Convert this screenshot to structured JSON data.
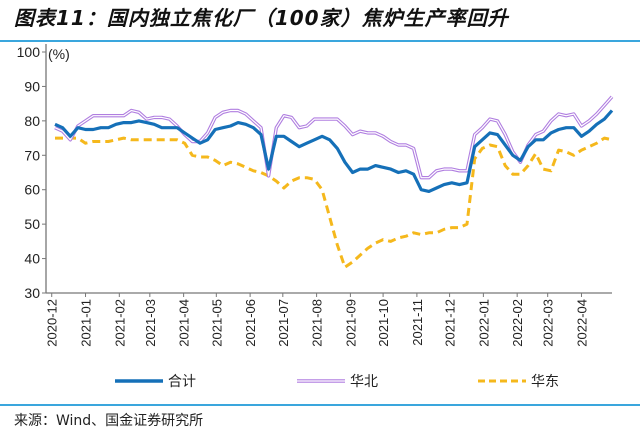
{
  "title": "图表11：国内独立焦化厂（100家）焦炉生产率回升",
  "source": "来源：Wind、国金证券研究所",
  "chart_data": {
    "type": "line",
    "title": "图表11：国内独立焦化厂（100家）焦炉生产率回升",
    "ylabel": "(%)",
    "xlabel": "",
    "ylim": [
      30,
      100
    ],
    "yticks": [
      30,
      40,
      50,
      60,
      70,
      80,
      90,
      100
    ],
    "xticks": [
      "2020-12",
      "2021-01",
      "2021-02",
      "2021-03",
      "2021-04",
      "2021-05",
      "2021-06",
      "2021-07",
      "2021-08",
      "2021-09",
      "2021-10",
      "2021-11",
      "2021-12",
      "2022-01",
      "2022-02",
      "2022-03",
      "2022-04"
    ],
    "grid": false,
    "legend": "bottom",
    "x": [
      "2020-12-04",
      "2020-12-11",
      "2020-12-18",
      "2020-12-25",
      "2021-01-01",
      "2021-01-08",
      "2021-01-15",
      "2021-01-22",
      "2021-01-29",
      "2021-02-05",
      "2021-02-12",
      "2021-02-19",
      "2021-02-26",
      "2021-03-05",
      "2021-03-12",
      "2021-03-19",
      "2021-03-26",
      "2021-04-02",
      "2021-04-09",
      "2021-04-16",
      "2021-04-23",
      "2021-04-30",
      "2021-05-07",
      "2021-05-14",
      "2021-05-21",
      "2021-05-28",
      "2021-06-04",
      "2021-06-11",
      "2021-06-18",
      "2021-06-25",
      "2021-07-02",
      "2021-07-09",
      "2021-07-16",
      "2021-07-23",
      "2021-07-30",
      "2021-08-06",
      "2021-08-13",
      "2021-08-20",
      "2021-08-27",
      "2021-09-03",
      "2021-09-10",
      "2021-09-17",
      "2021-09-24",
      "2021-10-01",
      "2021-10-08",
      "2021-10-15",
      "2021-10-22",
      "2021-10-29",
      "2021-11-05",
      "2021-11-12",
      "2021-11-19",
      "2021-11-26",
      "2021-12-03",
      "2021-12-10",
      "2021-12-17",
      "2021-12-24",
      "2021-12-31",
      "2022-01-07",
      "2022-01-14",
      "2022-01-21",
      "2022-01-28",
      "2022-02-04",
      "2022-02-11",
      "2022-02-18",
      "2022-02-25",
      "2022-03-04",
      "2022-03-11",
      "2022-03-18",
      "2022-03-25",
      "2022-04-01",
      "2022-04-08",
      "2022-04-15",
      "2022-04-22",
      "2022-04-29"
    ],
    "series": [
      {
        "name": "合计",
        "color": "#1570b8",
        "style": "solid",
        "values": [
          79,
          78,
          75.5,
          78,
          77.5,
          77.5,
          78,
          78,
          79,
          79.5,
          79.5,
          80,
          79.5,
          79,
          78,
          78,
          78,
          76.5,
          75,
          73.5,
          74.5,
          77.5,
          78,
          78.5,
          79.5,
          79,
          78,
          76,
          66,
          75.5,
          75.5,
          74,
          72.5,
          73.5,
          74.5,
          75.5,
          74.5,
          72,
          68,
          65,
          66,
          66,
          67,
          66.5,
          66,
          65,
          65.5,
          64.5,
          60,
          59.5,
          60.5,
          61.5,
          62,
          61.5,
          62,
          72.5,
          74.5,
          76.5,
          76,
          73,
          70,
          68.5,
          72.5,
          74.5,
          74.5,
          76.5,
          77.5,
          78,
          78,
          75.5,
          77,
          79,
          80.5,
          83
        ]
      },
      {
        "name": "华北",
        "color": "#b07ee0",
        "style": "double",
        "values": [
          78,
          77,
          74.5,
          78.5,
          80,
          81.5,
          81.5,
          81.5,
          81.5,
          81.5,
          83,
          82.5,
          80.5,
          81,
          81,
          80.5,
          78.5,
          76,
          74,
          74,
          76.5,
          81,
          82.5,
          83,
          83,
          82,
          80,
          78,
          64,
          78,
          81.5,
          81,
          78,
          78.5,
          80.5,
          80.5,
          80.5,
          80.5,
          78.5,
          76,
          77,
          76.5,
          76.5,
          75.5,
          74,
          73,
          73,
          72,
          63.5,
          63.5,
          65.5,
          66,
          66,
          65.5,
          65.5,
          76,
          78,
          80.5,
          80,
          76,
          71,
          68,
          73,
          76,
          77,
          80,
          82,
          81.5,
          82,
          78.5,
          80,
          82,
          84.5,
          87
        ]
      },
      {
        "name": "华东",
        "color": "#f5b81c",
        "style": "dashed",
        "values": [
          75,
          75,
          75,
          75,
          73.5,
          74,
          74,
          74,
          74.5,
          75,
          74.5,
          74.5,
          74.5,
          74.5,
          74.5,
          74.5,
          74.5,
          73.5,
          70,
          69.5,
          69.5,
          68.5,
          67,
          68,
          67.5,
          66.5,
          65.5,
          65,
          64,
          62.5,
          60.5,
          62.5,
          63.5,
          63.5,
          63,
          60,
          52,
          44,
          37.5,
          39,
          41,
          43,
          44.5,
          45.5,
          45,
          46,
          46.5,
          47.5,
          47,
          47.5,
          47.5,
          48.5,
          49,
          49,
          50,
          69,
          72,
          73,
          72.5,
          67,
          64.5,
          64.5,
          67,
          70.5,
          66,
          65.5,
          71.5,
          71,
          70,
          71.5,
          72.5,
          73.5,
          75,
          74.5
        ]
      }
    ]
  }
}
